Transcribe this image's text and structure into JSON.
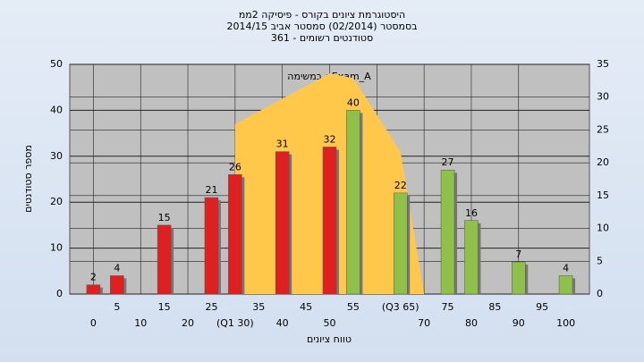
{
  "chart_data": {
    "type": "bar",
    "title": [
      "היסטוגרמת ציונים בקורס - פיסיקה 2ממ",
      "בסמסטר  (02/2014)  סמסטר אביב 2014/15",
      "סטודנטים רשומים - 361"
    ],
    "annotation": "במשימה : Exam_A",
    "xlabel": "טווח ציונים",
    "ylabel": "מספר סטודנטים",
    "x": [
      0,
      5,
      15,
      25,
      30,
      40,
      50,
      55,
      65,
      75,
      80,
      90,
      100
    ],
    "values": [
      2,
      4,
      15,
      21,
      26,
      31,
      32,
      40,
      22,
      27,
      16,
      7,
      4
    ],
    "colors": [
      "#e02020",
      "#e02020",
      "#e02020",
      "#e02020",
      "#e02020",
      "#e02020",
      "#e02020",
      "#8fc04a",
      "#8fc04a",
      "#8fc04a",
      "#8fc04a",
      "#8fc04a",
      "#8fc04a"
    ],
    "area": {
      "color": "#ffc84a",
      "x": [
        30,
        30,
        50,
        55,
        65,
        70
      ],
      "values": [
        0,
        37,
        48,
        47,
        31,
        0
      ]
    },
    "xlim": [
      -5,
      105
    ],
    "xticks": [
      0,
      5,
      10,
      15,
      20,
      25,
      {
        "value": 30,
        "label": "(Q1 30)"
      },
      35,
      40,
      45,
      50,
      55,
      {
        "value": 65,
        "label": "(Q3 65)"
      },
      70,
      75,
      80,
      85,
      90,
      95,
      100
    ],
    "ylim": [
      0,
      50
    ],
    "yticks": [
      0,
      10,
      20,
      30,
      40,
      50
    ],
    "y2lim": [
      0,
      35
    ],
    "y2ticks": [
      0,
      5,
      10,
      15,
      20,
      25,
      30,
      35
    ],
    "grid": true
  }
}
